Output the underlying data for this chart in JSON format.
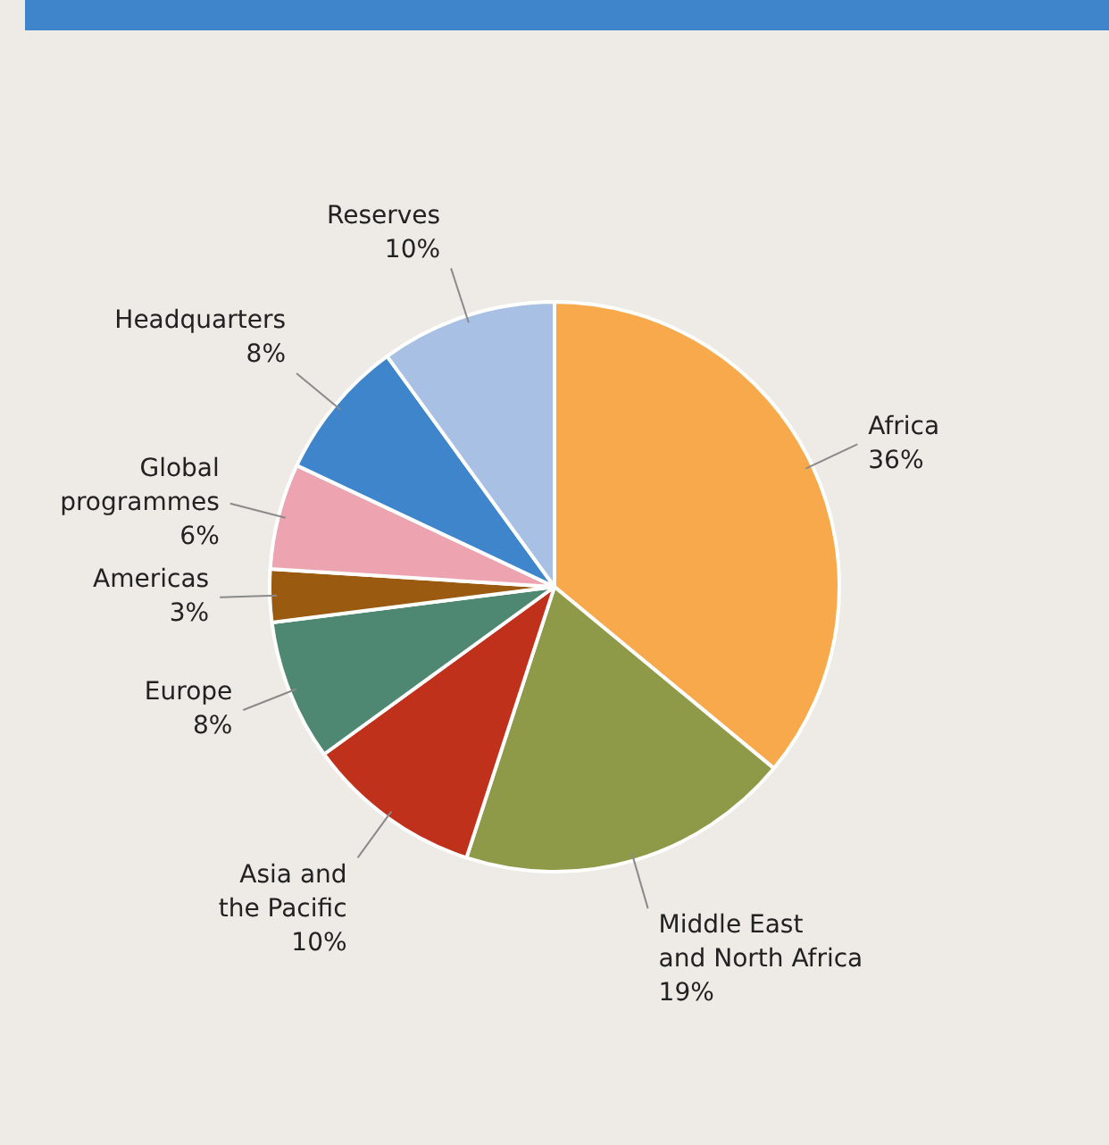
{
  "chart_data": {
    "type": "pie",
    "categories": [
      "Africa",
      "Middle East\nand North Africa",
      "Asia and\nthe Pacific",
      "Europe",
      "Americas",
      "Global\nprogrammes",
      "Headquarters",
      "Reserves"
    ],
    "values": [
      36,
      19,
      10,
      8,
      3,
      6,
      8,
      10
    ],
    "value_labels": [
      "36%",
      "19%",
      "10%",
      "8%",
      "3%",
      "6%",
      "8%",
      "10%"
    ],
    "colors": [
      "#f7a94c",
      "#8f9a48",
      "#c0311c",
      "#4e8872",
      "#9a5a10",
      "#eda3b0",
      "#3f85cc",
      "#a7c0e3"
    ],
    "legend": false
  }
}
